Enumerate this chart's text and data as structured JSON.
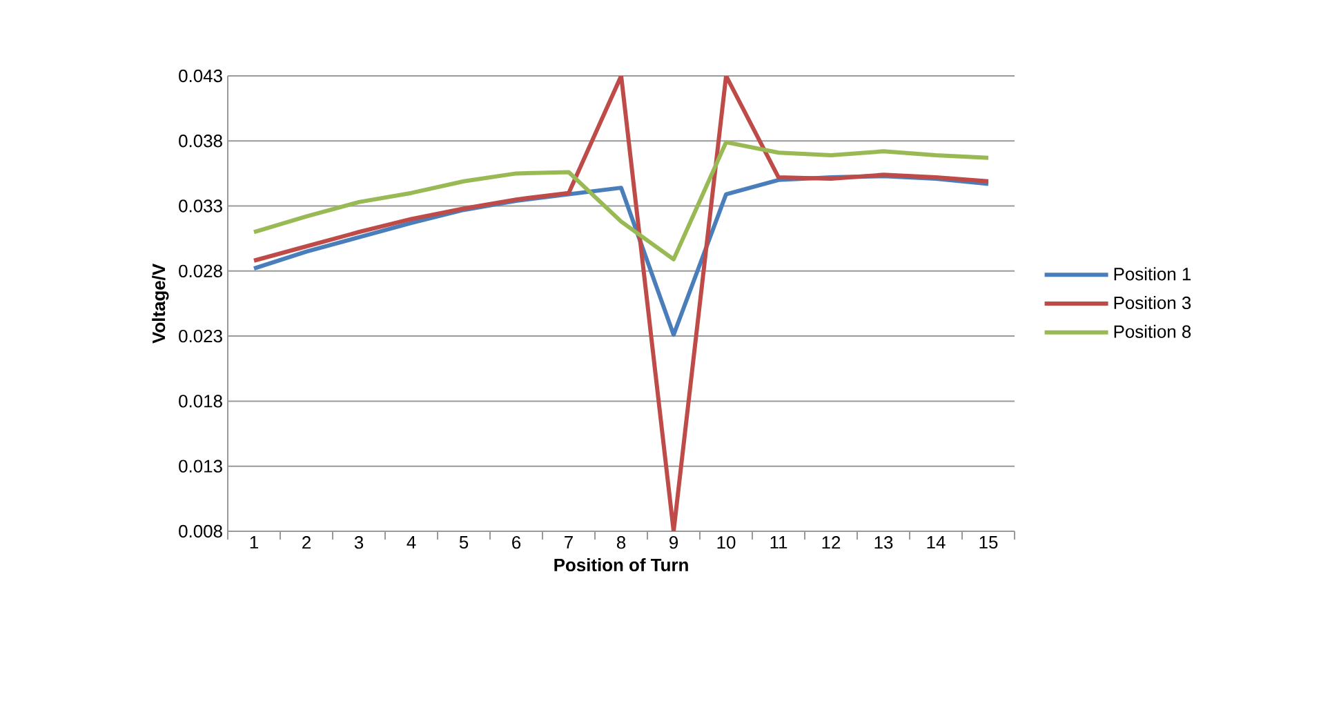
{
  "chart_data": {
    "type": "line",
    "xlabel": "Position of Turn",
    "ylabel": "Voltage/V",
    "categories": [
      "1",
      "2",
      "3",
      "4",
      "5",
      "6",
      "7",
      "8",
      "9",
      "10",
      "11",
      "12",
      "13",
      "14",
      "15"
    ],
    "ylim": [
      0.008,
      0.043
    ],
    "yticks": [
      0.008,
      0.013,
      0.018,
      0.023,
      0.028,
      0.033,
      0.038,
      0.043
    ],
    "grid": "y",
    "legend": "right",
    "marker": "none",
    "line_style": "solid",
    "series": [
      {
        "name": "Position 1",
        "color": "#4a7ebb",
        "values": [
          0.0282,
          0.0295,
          0.0306,
          0.0317,
          0.0327,
          0.0334,
          0.0339,
          0.0344,
          0.0231,
          0.0339,
          0.035,
          0.0352,
          0.0353,
          0.0351,
          0.0347
        ]
      },
      {
        "name": "Position 3",
        "color": "#be4b48",
        "values": [
          0.0288,
          0.0299,
          0.031,
          0.032,
          0.0328,
          0.0335,
          0.034,
          0.043,
          0.008,
          0.043,
          0.0352,
          0.0351,
          0.0354,
          0.0352,
          0.0349
        ]
      },
      {
        "name": "Position 8",
        "color": "#98b954",
        "values": [
          0.031,
          0.0322,
          0.0333,
          0.034,
          0.0349,
          0.0355,
          0.0356,
          0.0318,
          0.0289,
          0.0379,
          0.0371,
          0.0369,
          0.0372,
          0.0369,
          0.0367
        ]
      }
    ]
  }
}
